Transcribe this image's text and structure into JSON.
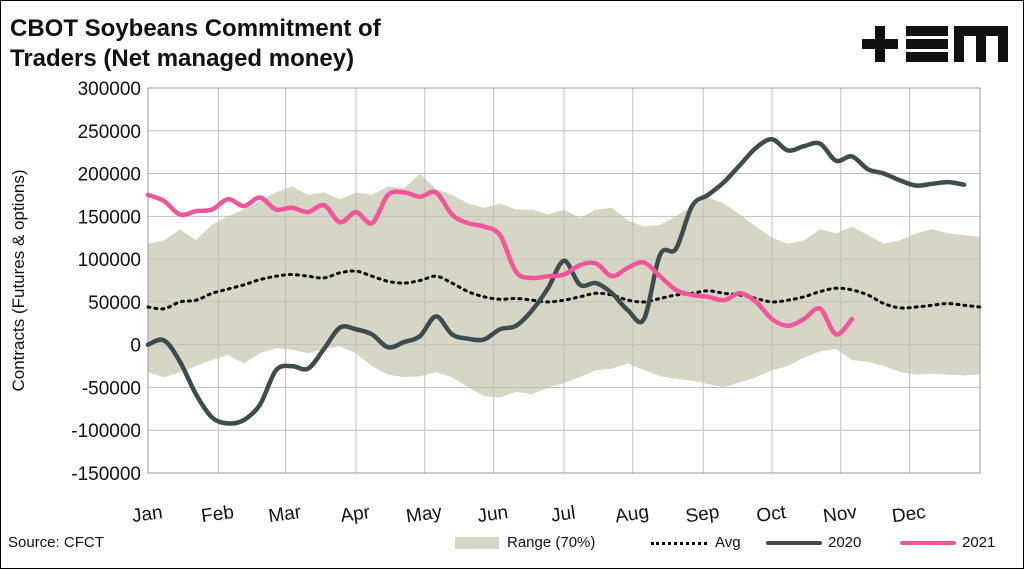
{
  "title_line1": "CBOT Soybeans Commitment of",
  "title_line2": "Traders (Net managed money)",
  "logo_text": "+≡M",
  "source": "Source: CFCT",
  "colors": {
    "range": "#d7d6c4",
    "avg": "#000000",
    "s2020": "#3c4d4f",
    "s2021": "#f2559a",
    "grid": "#bfbfbf"
  },
  "chart_data": {
    "type": "line",
    "title": "CBOT Soybeans Commitment of Traders (Net managed money)",
    "ylabel": "Contracts (Futures & options)",
    "xlabel": "",
    "ylim": [
      -150000,
      300000
    ],
    "yticks": [
      300000,
      250000,
      200000,
      150000,
      100000,
      50000,
      0,
      -50000,
      -100000,
      -150000
    ],
    "ytick_labels": [
      "300000",
      "250000",
      "200000",
      "150000",
      "100000",
      "50000",
      "0",
      "-50000",
      "-100000",
      "-150000"
    ],
    "x_tick_labels": [
      "Jan",
      "Feb",
      "Mar",
      "Apr",
      "May",
      "Jun",
      "Jul",
      "Aug",
      "Sep",
      "Oct",
      "Nov",
      "Dec"
    ],
    "x_tick_weeks": [
      0,
      4.4,
      8.6,
      13,
      17.3,
      21.6,
      26,
      30.3,
      34.7,
      39,
      43.3,
      47.6
    ],
    "x_max_week": 52,
    "grid": true,
    "legend_position": "bottom",
    "legend": [
      "Range (70%)",
      "Avg",
      "2020",
      "2021"
    ],
    "range_upper": [
      [
        0,
        118000
      ],
      [
        1,
        122000
      ],
      [
        2,
        135000
      ],
      [
        3,
        122000
      ],
      [
        4,
        140000
      ],
      [
        5,
        150000
      ],
      [
        6,
        158000
      ],
      [
        7,
        168000
      ],
      [
        8,
        178000
      ],
      [
        9,
        185000
      ],
      [
        10,
        175000
      ],
      [
        11,
        178000
      ],
      [
        12,
        170000
      ],
      [
        13,
        178000
      ],
      [
        14,
        175000
      ],
      [
        15,
        185000
      ],
      [
        16,
        183000
      ],
      [
        17,
        200000
      ],
      [
        18,
        182000
      ],
      [
        19,
        175000
      ],
      [
        20,
        165000
      ],
      [
        21,
        160000
      ],
      [
        22,
        165000
      ],
      [
        23,
        158000
      ],
      [
        24,
        158000
      ],
      [
        25,
        152000
      ],
      [
        26,
        158000
      ],
      [
        27,
        148000
      ],
      [
        28,
        158000
      ],
      [
        29,
        160000
      ],
      [
        30,
        145000
      ],
      [
        31,
        138000
      ],
      [
        32,
        140000
      ],
      [
        33,
        150000
      ],
      [
        34,
        162000
      ],
      [
        35,
        172000
      ],
      [
        36,
        165000
      ],
      [
        37,
        152000
      ],
      [
        38,
        138000
      ],
      [
        39,
        125000
      ],
      [
        40,
        118000
      ],
      [
        41,
        122000
      ],
      [
        42,
        135000
      ],
      [
        43,
        130000
      ],
      [
        44,
        138000
      ],
      [
        45,
        128000
      ],
      [
        46,
        118000
      ],
      [
        47,
        122000
      ],
      [
        48,
        130000
      ],
      [
        49,
        135000
      ],
      [
        50,
        130000
      ],
      [
        51,
        128000
      ],
      [
        52,
        126000
      ]
    ],
    "range_lower": [
      [
        0,
        -32000
      ],
      [
        1,
        -38000
      ],
      [
        2,
        -32000
      ],
      [
        3,
        -25000
      ],
      [
        4,
        -18000
      ],
      [
        5,
        -12000
      ],
      [
        6,
        -22000
      ],
      [
        7,
        -10000
      ],
      [
        8,
        -4000
      ],
      [
        9,
        -6000
      ],
      [
        10,
        -10000
      ],
      [
        11,
        -5000
      ],
      [
        12,
        -2000
      ],
      [
        13,
        -10000
      ],
      [
        14,
        -25000
      ],
      [
        15,
        -35000
      ],
      [
        16,
        -38000
      ],
      [
        17,
        -37000
      ],
      [
        18,
        -32000
      ],
      [
        19,
        -38000
      ],
      [
        20,
        -50000
      ],
      [
        21,
        -60000
      ],
      [
        22,
        -62000
      ],
      [
        23,
        -55000
      ],
      [
        24,
        -58000
      ],
      [
        25,
        -50000
      ],
      [
        26,
        -45000
      ],
      [
        27,
        -38000
      ],
      [
        28,
        -30000
      ],
      [
        29,
        -28000
      ],
      [
        30,
        -22000
      ],
      [
        31,
        -30000
      ],
      [
        32,
        -37000
      ],
      [
        33,
        -40000
      ],
      [
        34,
        -42000
      ],
      [
        35,
        -46000
      ],
      [
        36,
        -50000
      ],
      [
        37,
        -44000
      ],
      [
        38,
        -38000
      ],
      [
        39,
        -30000
      ],
      [
        40,
        -25000
      ],
      [
        41,
        -15000
      ],
      [
        42,
        -8000
      ],
      [
        43,
        -5000
      ],
      [
        44,
        -18000
      ],
      [
        45,
        -20000
      ],
      [
        46,
        -25000
      ],
      [
        47,
        -32000
      ],
      [
        48,
        -35000
      ],
      [
        49,
        -34000
      ],
      [
        50,
        -35000
      ],
      [
        51,
        -36000
      ],
      [
        52,
        -35000
      ]
    ],
    "series": [
      {
        "name": "Avg",
        "points": [
          [
            0,
            44000
          ],
          [
            1,
            42000
          ],
          [
            2,
            50000
          ],
          [
            3,
            52000
          ],
          [
            4,
            60000
          ],
          [
            5,
            65000
          ],
          [
            6,
            70000
          ],
          [
            7,
            76000
          ],
          [
            8,
            80000
          ],
          [
            9,
            82000
          ],
          [
            10,
            80000
          ],
          [
            11,
            78000
          ],
          [
            12,
            84000
          ],
          [
            13,
            86000
          ],
          [
            14,
            80000
          ],
          [
            15,
            74000
          ],
          [
            16,
            72000
          ],
          [
            17,
            75000
          ],
          [
            18,
            80000
          ],
          [
            19,
            72000
          ],
          [
            20,
            62000
          ],
          [
            21,
            56000
          ],
          [
            22,
            53000
          ],
          [
            23,
            54000
          ],
          [
            24,
            52000
          ],
          [
            25,
            50000
          ],
          [
            26,
            52000
          ],
          [
            27,
            56000
          ],
          [
            28,
            60000
          ],
          [
            29,
            58000
          ],
          [
            30,
            52000
          ],
          [
            31,
            50000
          ],
          [
            32,
            54000
          ],
          [
            33,
            58000
          ],
          [
            34,
            60000
          ],
          [
            35,
            63000
          ],
          [
            36,
            60000
          ],
          [
            37,
            58000
          ],
          [
            38,
            54000
          ],
          [
            39,
            50000
          ],
          [
            40,
            52000
          ],
          [
            41,
            56000
          ],
          [
            42,
            62000
          ],
          [
            43,
            66000
          ],
          [
            44,
            64000
          ],
          [
            45,
            58000
          ],
          [
            46,
            48000
          ],
          [
            47,
            43000
          ],
          [
            48,
            44000
          ],
          [
            49,
            46000
          ],
          [
            50,
            48000
          ],
          [
            51,
            46000
          ],
          [
            52,
            44000
          ]
        ]
      },
      {
        "name": "2020",
        "points": [
          [
            0,
            0
          ],
          [
            1,
            5000
          ],
          [
            2,
            -20000
          ],
          [
            3,
            -58000
          ],
          [
            4,
            -85000
          ],
          [
            5,
            -92000
          ],
          [
            6,
            -88000
          ],
          [
            7,
            -70000
          ],
          [
            8,
            -30000
          ],
          [
            9,
            -25000
          ],
          [
            10,
            -28000
          ],
          [
            11,
            -5000
          ],
          [
            12,
            20000
          ],
          [
            13,
            18000
          ],
          [
            14,
            12000
          ],
          [
            15,
            -3000
          ],
          [
            16,
            3000
          ],
          [
            17,
            10000
          ],
          [
            18,
            33000
          ],
          [
            19,
            12000
          ],
          [
            20,
            7000
          ],
          [
            21,
            6000
          ],
          [
            22,
            18000
          ],
          [
            23,
            22000
          ],
          [
            24,
            40000
          ],
          [
            25,
            66000
          ],
          [
            26,
            98000
          ],
          [
            27,
            70000
          ],
          [
            28,
            72000
          ],
          [
            29,
            60000
          ],
          [
            30,
            40000
          ],
          [
            31,
            30000
          ],
          [
            32,
            105000
          ],
          [
            33,
            112000
          ],
          [
            34,
            162000
          ],
          [
            35,
            175000
          ],
          [
            36,
            190000
          ],
          [
            37,
            210000
          ],
          [
            38,
            230000
          ],
          [
            39,
            240000
          ],
          [
            40,
            227000
          ],
          [
            41,
            232000
          ],
          [
            42,
            235000
          ],
          [
            43,
            215000
          ],
          [
            44,
            220000
          ],
          [
            45,
            205000
          ],
          [
            46,
            200000
          ],
          [
            47,
            192000
          ],
          [
            48,
            186000
          ],
          [
            49,
            188000
          ],
          [
            50,
            190000
          ],
          [
            51,
            187000
          ]
        ]
      },
      {
        "name": "2021",
        "points": [
          [
            0,
            175000
          ],
          [
            1,
            168000
          ],
          [
            2,
            152000
          ],
          [
            3,
            156000
          ],
          [
            4,
            158000
          ],
          [
            5,
            170000
          ],
          [
            6,
            162000
          ],
          [
            7,
            172000
          ],
          [
            8,
            158000
          ],
          [
            9,
            160000
          ],
          [
            10,
            155000
          ],
          [
            11,
            163000
          ],
          [
            12,
            143000
          ],
          [
            13,
            155000
          ],
          [
            14,
            142000
          ],
          [
            15,
            175000
          ],
          [
            16,
            178000
          ],
          [
            17,
            173000
          ],
          [
            18,
            178000
          ],
          [
            19,
            152000
          ],
          [
            20,
            142000
          ],
          [
            21,
            138000
          ],
          [
            22,
            128000
          ],
          [
            23,
            85000
          ],
          [
            24,
            78000
          ],
          [
            25,
            80000
          ],
          [
            26,
            82000
          ],
          [
            27,
            93000
          ],
          [
            28,
            95000
          ],
          [
            29,
            80000
          ],
          [
            30,
            90000
          ],
          [
            31,
            96000
          ],
          [
            32,
            80000
          ],
          [
            33,
            64000
          ],
          [
            34,
            58000
          ],
          [
            35,
            56000
          ],
          [
            36,
            52000
          ],
          [
            37,
            60000
          ],
          [
            38,
            50000
          ],
          [
            39,
            30000
          ],
          [
            40,
            22000
          ],
          [
            41,
            30000
          ],
          [
            42,
            42000
          ],
          [
            43,
            12000
          ],
          [
            44,
            30000
          ]
        ]
      }
    ]
  },
  "legend": {
    "range": "Range (70%)",
    "avg": "Avg",
    "s2020": "2020",
    "s2021": "2021"
  }
}
